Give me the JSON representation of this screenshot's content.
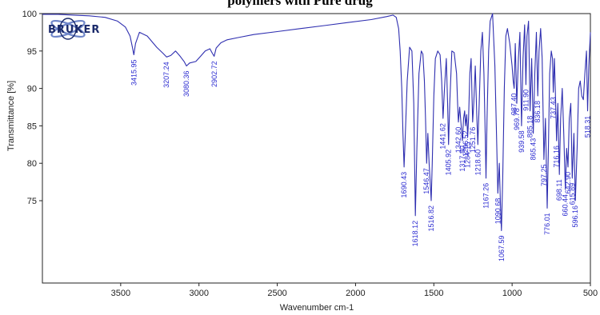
{
  "chart_data": {
    "type": "line",
    "title": "polymers with Pure drug",
    "logo_text": "BRUKER",
    "xlabel": "Wavenumber cm-1",
    "ylabel": "Transmittance [%]",
    "xlim": [
      4000,
      500
    ],
    "ylim": [
      64,
      100
    ],
    "x_reversed": true,
    "x_ticks": [
      3500,
      3000,
      2500,
      2000,
      1500,
      1000,
      500
    ],
    "y_ticks": [
      75,
      80,
      85,
      90,
      95,
      100
    ],
    "line_color": "#2f2fb0",
    "label_color": "#2b2bd0",
    "peak_labels": [
      {
        "text": "3415.95",
        "x": 3415.95,
        "y": 94.5
      },
      {
        "text": "3207.24",
        "x": 3207.24,
        "y": 94.2
      },
      {
        "text": "3080.36",
        "x": 3080.36,
        "y": 93.0
      },
      {
        "text": "2902.72",
        "x": 2902.72,
        "y": 94.3
      },
      {
        "text": "1690.43",
        "x": 1690.43,
        "y": 79.5
      },
      {
        "text": "1618.12",
        "x": 1618.12,
        "y": 73.0
      },
      {
        "text": "1546.47",
        "x": 1546.47,
        "y": 80.0
      },
      {
        "text": "1516.82",
        "x": 1516.82,
        "y": 75.0
      },
      {
        "text": "1441.62",
        "x": 1441.62,
        "y": 86.0
      },
      {
        "text": "1405.92",
        "x": 1405.92,
        "y": 82.5
      },
      {
        "text": "1342.60",
        "x": 1342.6,
        "y": 85.5
      },
      {
        "text": "1317.80",
        "x": 1317.8,
        "y": 83.0
      },
      {
        "text": "1296.52",
        "x": 1296.52,
        "y": 85.0
      },
      {
        "text": "1284.15",
        "x": 1284.15,
        "y": 83.5
      },
      {
        "text": "1251.76",
        "x": 1251.76,
        "y": 85.5
      },
      {
        "text": "1218.60",
        "x": 1218.6,
        "y": 82.5
      },
      {
        "text": "1167.26",
        "x": 1167.26,
        "y": 78.0
      },
      {
        "text": "1090.68",
        "x": 1090.68,
        "y": 76.0
      },
      {
        "text": "1067.59",
        "x": 1067.59,
        "y": 71.0
      },
      {
        "text": "987.40",
        "x": 987.4,
        "y": 90.0
      },
      {
        "text": "969.78",
        "x": 969.78,
        "y": 88.0
      },
      {
        "text": "939.58",
        "x": 939.58,
        "y": 85.0
      },
      {
        "text": "911.90",
        "x": 911.9,
        "y": 90.5
      },
      {
        "text": "885.18",
        "x": 885.18,
        "y": 87.0
      },
      {
        "text": "865.43",
        "x": 865.43,
        "y": 84.0
      },
      {
        "text": "836.18",
        "x": 836.18,
        "y": 89.0
      },
      {
        "text": "797.25",
        "x": 797.25,
        "y": 80.5
      },
      {
        "text": "776.01",
        "x": 776.01,
        "y": 74.0
      },
      {
        "text": "737.43",
        "x": 737.43,
        "y": 89.5
      },
      {
        "text": "716.16",
        "x": 716.16,
        "y": 83.0
      },
      {
        "text": "698.11",
        "x": 698.11,
        "y": 78.5
      },
      {
        "text": "660.44",
        "x": 660.44,
        "y": 76.5
      },
      {
        "text": "642.90",
        "x": 642.9,
        "y": 79.5
      },
      {
        "text": "615.89",
        "x": 615.89,
        "y": 78.0
      },
      {
        "text": "596.16",
        "x": 596.16,
        "y": 75.0
      },
      {
        "text": "518.31",
        "x": 518.31,
        "y": 87.0
      }
    ],
    "series": [
      {
        "x": [
          4000,
          3900,
          3800,
          3700,
          3600,
          3520,
          3470,
          3440,
          3425,
          3416,
          3405,
          3380,
          3330,
          3270,
          3230,
          3207,
          3180,
          3150,
          3120,
          3095,
          3080,
          3060,
          3020,
          2990,
          2960,
          2930,
          2915,
          2903,
          2890,
          2860,
          2820,
          2750,
          2650,
          2500,
          2350,
          2200,
          2050,
          1900,
          1800,
          1760,
          1740,
          1725,
          1715,
          1705,
          1697,
          1690,
          1682,
          1670,
          1655,
          1640,
          1628,
          1618,
          1608,
          1595,
          1580,
          1570,
          1560,
          1553,
          1546,
          1538,
          1530,
          1522,
          1517,
          1510,
          1500,
          1490,
          1475,
          1460,
          1450,
          1441,
          1432,
          1420,
          1412,
          1406,
          1398,
          1385,
          1370,
          1355,
          1348,
          1343,
          1335,
          1325,
          1318,
          1310,
          1303,
          1297,
          1290,
          1284,
          1278,
          1270,
          1262,
          1252,
          1245,
          1235,
          1225,
          1219,
          1210,
          1200,
          1190,
          1180,
          1172,
          1167,
          1160,
          1150,
          1140,
          1125,
          1110,
          1100,
          1091,
          1082,
          1074,
          1068,
          1060,
          1050,
          1040,
          1030,
          1015,
          1000,
          993,
          987,
          980,
          970,
          960,
          950,
          940,
          930,
          920,
          912,
          905,
          895,
          885,
          875,
          865,
          855,
          845,
          836,
          828,
          818,
          808,
          797,
          787,
          776,
          768,
          760,
          750,
          742,
          737,
          730,
          722,
          716,
          708,
          698,
          690,
          680,
          670,
          660,
          652,
          643,
          635,
          625,
          616,
          605,
          596,
          585,
          575,
          565,
          555,
          545,
          535,
          525,
          518,
          510,
          500
        ],
        "y": [
          99.9,
          99.9,
          99.8,
          99.7,
          99.5,
          99.0,
          98.2,
          97.0,
          95.5,
          94.5,
          96.0,
          97.5,
          97.0,
          95.5,
          94.7,
          94.2,
          94.4,
          95.0,
          94.3,
          93.6,
          93.0,
          93.4,
          93.6,
          94.3,
          95.0,
          95.3,
          94.7,
          94.3,
          95.4,
          96.1,
          96.5,
          96.8,
          97.2,
          97.6,
          98.0,
          98.4,
          98.8,
          99.2,
          99.6,
          99.8,
          99.5,
          98.0,
          95.0,
          90.0,
          84.0,
          79.5,
          84.0,
          91.0,
          95.5,
          95.0,
          88.0,
          73.0,
          82.0,
          92.0,
          95.0,
          94.6,
          91.0,
          86.0,
          80.0,
          84.0,
          80.0,
          77.0,
          75.0,
          80.0,
          89.0,
          94.0,
          95.0,
          94.5,
          91.0,
          86.0,
          90.0,
          94.0,
          88.0,
          82.5,
          88.0,
          95.0,
          94.8,
          92.0,
          88.0,
          85.5,
          87.5,
          85.0,
          83.0,
          86.0,
          87.0,
          85.0,
          86.5,
          83.5,
          86.0,
          92.0,
          94.0,
          85.5,
          88.0,
          93.0,
          86.0,
          82.5,
          88.0,
          95.0,
          97.5,
          92.0,
          84.0,
          78.0,
          86.0,
          95.0,
          99.0,
          100.0,
          93.0,
          84.0,
          76.0,
          80.0,
          74.0,
          71.0,
          78.0,
          90.0,
          97.0,
          98.0,
          96.0,
          93.0,
          91.0,
          90.0,
          96.0,
          88.0,
          94.0,
          97.5,
          85.0,
          94.0,
          98.5,
          90.5,
          97.0,
          99.0,
          87.0,
          94.0,
          84.0,
          92.0,
          97.5,
          89.0,
          95.0,
          98.0,
          94.0,
          80.5,
          86.0,
          74.0,
          82.0,
          92.0,
          95.0,
          94.0,
          89.5,
          94.0,
          88.0,
          83.0,
          88.0,
          78.5,
          86.0,
          90.0,
          84.0,
          76.5,
          82.0,
          79.5,
          86.0,
          88.0,
          78.0,
          84.0,
          75.0,
          82.0,
          90.0,
          91.0,
          89.0,
          88.5,
          92.0,
          95.0,
          87.0,
          93.0,
          97.5
        ]
      }
    ]
  }
}
